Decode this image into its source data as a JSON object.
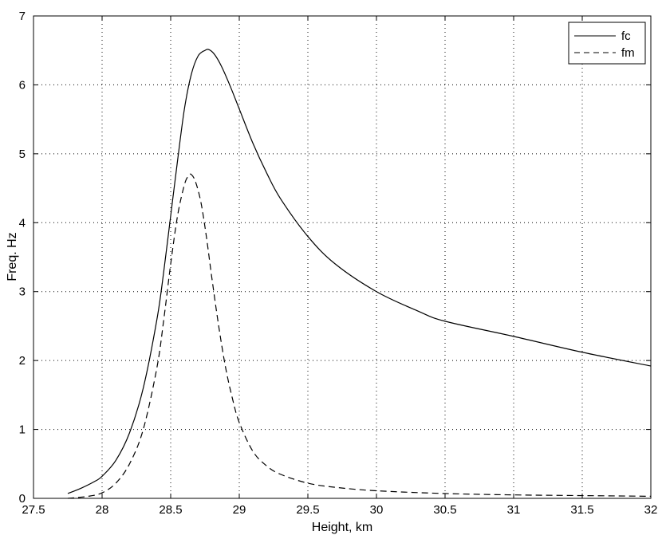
{
  "chart_data": {
    "type": "line",
    "xlabel": "Height, km",
    "ylabel": "Freq. Hz",
    "xlim": [
      27.5,
      32
    ],
    "ylim": [
      0,
      7
    ],
    "x_ticks": [
      "27.5",
      "28",
      "28.5",
      "29",
      "29.5",
      "30",
      "30.5",
      "31",
      "31.5",
      "32"
    ],
    "y_ticks": [
      "0",
      "1",
      "2",
      "3",
      "4",
      "5",
      "6",
      "7"
    ],
    "grid": true,
    "legend_position": "top-right",
    "series": [
      {
        "name": "fc",
        "style": "solid",
        "color": "#000000",
        "x": [
          27.75,
          27.85,
          27.95,
          28.0,
          28.1,
          28.2,
          28.3,
          28.4,
          28.45,
          28.5,
          28.55,
          28.6,
          28.65,
          28.7,
          28.75,
          28.78,
          28.82,
          28.87,
          28.93,
          29.0,
          29.1,
          29.2,
          29.3,
          29.5,
          29.7,
          30.0,
          30.3,
          30.5,
          31.0,
          31.5,
          32.0
        ],
        "y": [
          0.07,
          0.15,
          0.25,
          0.32,
          0.55,
          0.95,
          1.6,
          2.6,
          3.3,
          4.1,
          4.9,
          5.65,
          6.15,
          6.42,
          6.5,
          6.51,
          6.44,
          6.27,
          6.0,
          5.65,
          5.15,
          4.72,
          4.35,
          3.8,
          3.4,
          3.0,
          2.72,
          2.57,
          2.35,
          2.12,
          1.92
        ]
      },
      {
        "name": "fm",
        "style": "dashed",
        "color": "#000000",
        "x": [
          27.75,
          27.9,
          28.0,
          28.1,
          28.2,
          28.3,
          28.4,
          28.45,
          28.5,
          28.55,
          28.6,
          28.63,
          28.65,
          28.68,
          28.72,
          28.76,
          28.8,
          28.85,
          28.9,
          28.95,
          29.0,
          29.1,
          29.2,
          29.3,
          29.5,
          29.7,
          30.0,
          30.5,
          31.0,
          31.5,
          32.0
        ],
        "y": [
          0.0,
          0.03,
          0.08,
          0.22,
          0.5,
          1.0,
          1.9,
          2.6,
          3.4,
          4.1,
          4.55,
          4.68,
          4.7,
          4.6,
          4.3,
          3.8,
          3.2,
          2.5,
          1.9,
          1.45,
          1.1,
          0.68,
          0.47,
          0.35,
          0.22,
          0.16,
          0.11,
          0.07,
          0.05,
          0.04,
          0.03
        ]
      }
    ]
  }
}
